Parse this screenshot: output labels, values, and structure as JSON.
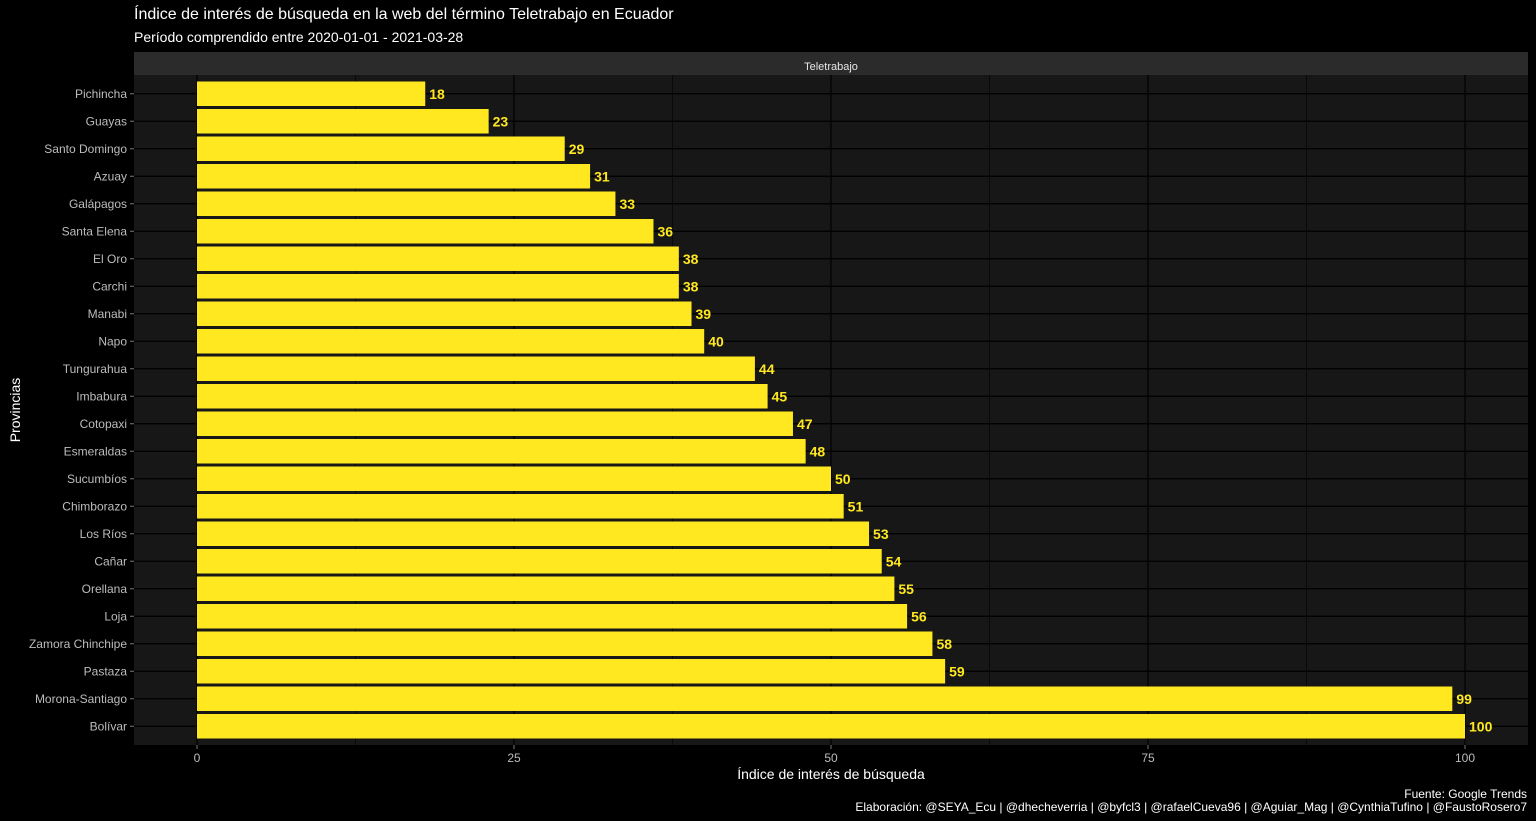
{
  "title": "Índice de interés de búsqueda en la web del término Teletrabajo en Ecuador",
  "subtitle": "Período comprendido entre 2020-01-01 - 2021-03-28",
  "caption_source": "Fuente: Google Trends",
  "caption_credits": "Elaboración: @SEYA_Ecu | @dhecheverria | @byfcl3 | @rafaelCueva96 | @Aguiar_Mag | @CynthiaTufino | @FaustoRosero7",
  "colors": {
    "background": "#000000",
    "panel": "#171717",
    "strip": "#2b2b2b",
    "bar": "#FFE820",
    "label": "#FFE820",
    "text": "#ffffff",
    "tick_text": "#bcbcbc"
  },
  "chart_data": {
    "type": "bar",
    "orientation": "horizontal",
    "facet": "Teletrabajo",
    "xlabel": "Índice de interés de búsqueda",
    "ylabel": "Provincias",
    "xlim": [
      -5,
      105
    ],
    "xticks": [
      0,
      25,
      50,
      75,
      100
    ],
    "grid": true,
    "categories": [
      "Pichincha",
      "Guayas",
      "Santo Domingo",
      "Azuay",
      "Galápagos",
      "Santa Elena",
      "El Oro",
      "Carchi",
      "Manabi",
      "Napo",
      "Tungurahua",
      "Imbabura",
      "Cotopaxi",
      "Esmeraldas",
      "Sucumbíos",
      "Chimborazo",
      "Los Ríos",
      "Cañar",
      "Orellana",
      "Loja",
      "Zamora Chinchipe",
      "Pastaza",
      "Morona-Santiago",
      "Bolívar"
    ],
    "values": [
      18,
      23,
      29,
      31,
      33,
      36,
      38,
      38,
      39,
      40,
      44,
      45,
      47,
      48,
      50,
      51,
      53,
      54,
      55,
      56,
      58,
      59,
      99,
      100
    ]
  }
}
